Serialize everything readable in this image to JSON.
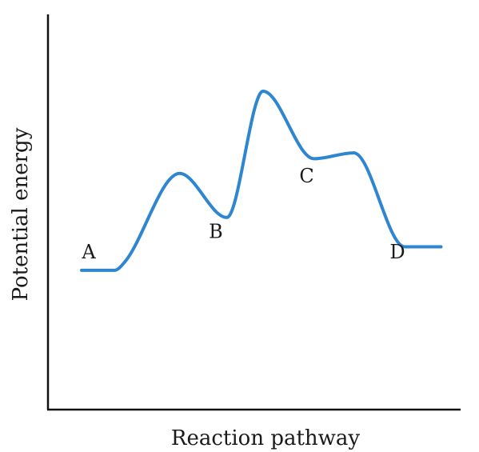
{
  "chart_data": {
    "type": "line",
    "title": "",
    "xlabel": "Reaction pathway",
    "ylabel": "Potential energy",
    "xlim": [
      0,
      100
    ],
    "ylim": [
      0,
      100
    ],
    "grid": false,
    "series": [
      {
        "color": "#2f86d0",
        "x": [
          0,
          9,
          12,
          27,
          40,
          50,
          64,
          75,
          89,
          99
        ],
        "y": [
          30,
          30,
          33,
          63,
          48,
          91,
          68,
          70,
          38,
          38
        ]
      }
    ],
    "annotations": [
      {
        "text": "A",
        "x": 2,
        "y": 34
      },
      {
        "text": "B",
        "x": 37,
        "y": 41
      },
      {
        "text": "C",
        "x": 62,
        "y": 60
      },
      {
        "text": "D",
        "x": 87,
        "y": 34
      }
    ]
  }
}
